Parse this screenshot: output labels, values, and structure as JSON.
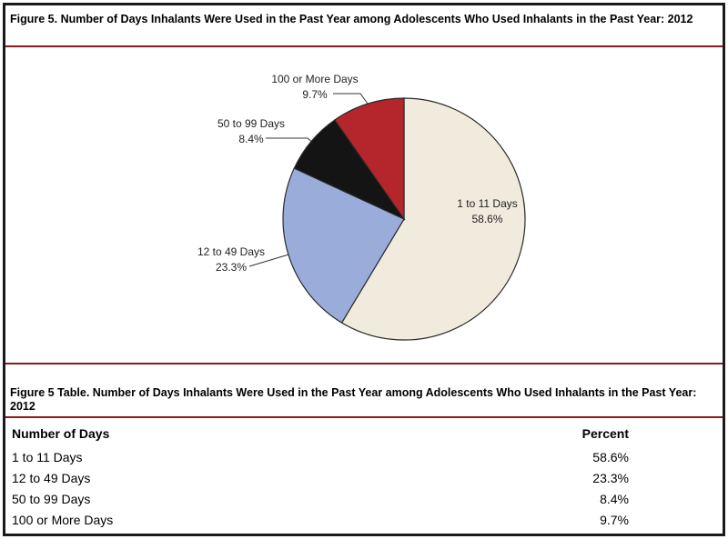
{
  "figure": {
    "title": "Figure 5. Number of Days Inhalants Were Used in the Past Year among Adolescents Who Used Inhalants in the Past Year: 2012"
  },
  "chart_data": {
    "type": "pie",
    "title": "Figure 5. Number of Days Inhalants Were Used in the Past Year among Adolescents Who Used Inhalants in the Past Year: 2012",
    "slices": [
      {
        "label": "1 to 11 Days",
        "value": 58.6,
        "value_label": "58.6%",
        "color": "#f1ebdd"
      },
      {
        "label": "12 to 49 Days",
        "value": 23.3,
        "value_label": "23.3%",
        "color": "#9aadda"
      },
      {
        "label": "50 to 99 Days",
        "value": 8.4,
        "value_label": "8.4%",
        "color": "#141414"
      },
      {
        "label": "100 or More Days",
        "value": 9.7,
        "value_label": "9.7%",
        "color": "#b5262c"
      }
    ]
  },
  "table": {
    "title": "Figure 5 Table. Number of Days Inhalants Were Used in the Past Year among Adolescents Who Used Inhalants in the Past Year: 2012",
    "headers": [
      "Number of Days",
      "Percent"
    ],
    "rows": [
      [
        "1 to 11 Days",
        "58.6%"
      ],
      [
        "12 to 49 Days",
        "23.3%"
      ],
      [
        "50 to 99 Days",
        "8.4%"
      ],
      [
        "100 or More Days",
        "9.7%"
      ]
    ]
  },
  "colors": {
    "rule": "#8b1a1a",
    "border": "#1a1a1a"
  }
}
